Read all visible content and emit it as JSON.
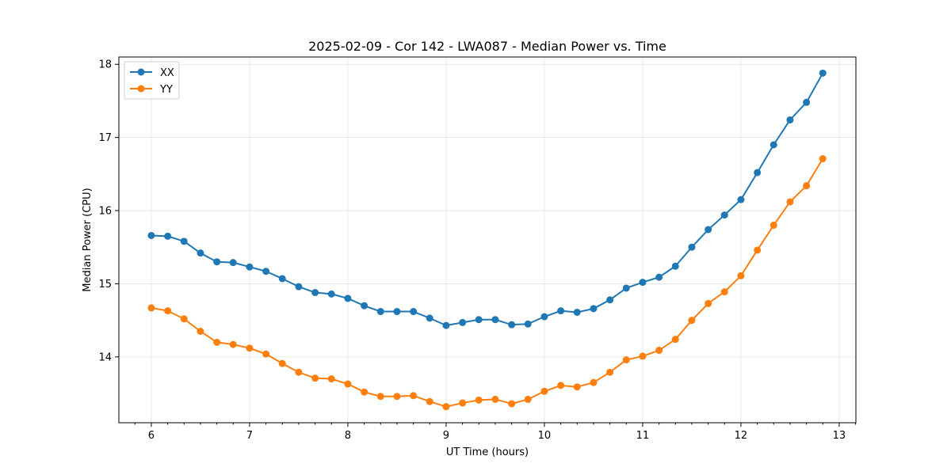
{
  "chart_data": {
    "type": "line",
    "title": "2025-02-09 - Cor 142 - LWA087 - Median Power vs. Time",
    "xlabel": "UT Time (hours)",
    "ylabel": "Median Power (CPU)",
    "xlim": [
      5.67,
      13.17
    ],
    "ylim": [
      13.1,
      18.1
    ],
    "xticks": [
      6,
      7,
      8,
      9,
      10,
      11,
      12,
      13
    ],
    "xtick_labels": [
      "6",
      "7",
      "8",
      "9",
      "10",
      "11",
      "12",
      "13"
    ],
    "yticks": [
      14,
      15,
      16,
      17,
      18
    ],
    "ytick_labels": [
      "14",
      "15",
      "16",
      "17",
      "18"
    ],
    "grid": true,
    "legend_position": "upper-left",
    "x": [
      6.0,
      6.167,
      6.333,
      6.5,
      6.667,
      6.833,
      7.0,
      7.167,
      7.333,
      7.5,
      7.667,
      7.833,
      8.0,
      8.167,
      8.333,
      8.5,
      8.667,
      8.833,
      9.0,
      9.167,
      9.333,
      9.5,
      9.667,
      9.833,
      10.0,
      10.167,
      10.333,
      10.5,
      10.667,
      10.833,
      11.0,
      11.167,
      11.333,
      11.5,
      11.667,
      11.833,
      12.0,
      12.167,
      12.333,
      12.5,
      12.667,
      12.833
    ],
    "series": [
      {
        "name": "XX",
        "color": "#1f77b4",
        "values": [
          15.66,
          15.65,
          15.58,
          15.42,
          15.3,
          15.29,
          15.23,
          15.17,
          15.07,
          14.96,
          14.88,
          14.86,
          14.8,
          14.7,
          14.62,
          14.62,
          14.62,
          14.53,
          14.43,
          14.47,
          14.51,
          14.51,
          14.44,
          14.45,
          14.55,
          14.63,
          14.61,
          14.66,
          14.78,
          14.94,
          15.02,
          15.09,
          15.24,
          15.5,
          15.74,
          15.94,
          16.15,
          16.52,
          16.9,
          17.24,
          17.48,
          17.88
        ]
      },
      {
        "name": "YY",
        "color": "#ff7f0e",
        "values": [
          14.67,
          14.63,
          14.52,
          14.35,
          14.2,
          14.17,
          14.12,
          14.04,
          13.91,
          13.79,
          13.71,
          13.7,
          13.63,
          13.52,
          13.46,
          13.46,
          13.47,
          13.39,
          13.32,
          13.37,
          13.41,
          13.42,
          13.36,
          13.42,
          13.53,
          13.61,
          13.59,
          13.65,
          13.79,
          13.96,
          14.01,
          14.09,
          14.24,
          14.5,
          14.73,
          14.89,
          15.11,
          15.46,
          15.8,
          16.12,
          16.34,
          16.71
        ]
      }
    ]
  }
}
